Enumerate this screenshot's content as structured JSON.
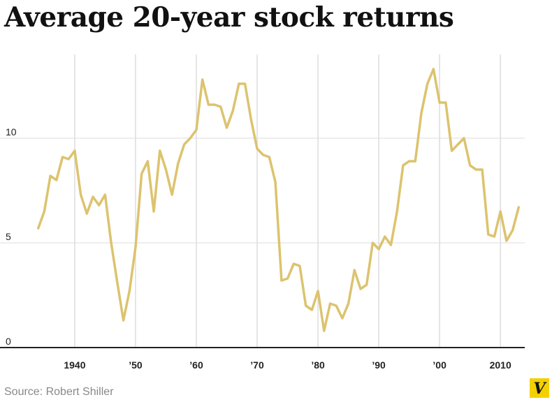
{
  "title": "Average 20-year stock returns",
  "source": "Source: Robert Shiller",
  "logo_text": "V",
  "colors": {
    "line": "#dcc36e",
    "grid": "#dddddd",
    "axis": "#222222",
    "text": "#222222",
    "muted": "#888888",
    "logo_bg": "#f5d000"
  },
  "chart_data": {
    "type": "line",
    "title": "Average 20-year stock returns",
    "xlabel": "",
    "ylabel": "",
    "xlim": [
      1933,
      2014
    ],
    "ylim": [
      0,
      14
    ],
    "grid": true,
    "x_ticks": [
      {
        "value": 1940,
        "label": "1940"
      },
      {
        "value": 1950,
        "label": "’50"
      },
      {
        "value": 1960,
        "label": "’60"
      },
      {
        "value": 1970,
        "label": "’70"
      },
      {
        "value": 1980,
        "label": "’80"
      },
      {
        "value": 1990,
        "label": "’90"
      },
      {
        "value": 2000,
        "label": "’00"
      },
      {
        "value": 2010,
        "label": "2010"
      }
    ],
    "y_ticks": [
      {
        "value": 0,
        "label": "0"
      },
      {
        "value": 5,
        "label": "5"
      },
      {
        "value": 10,
        "label": "10"
      }
    ],
    "series": [
      {
        "x": [
          1934,
          1935,
          1936,
          1937,
          1938,
          1939,
          1940,
          1941,
          1942,
          1943,
          1944,
          1945,
          1946,
          1947,
          1948,
          1949,
          1950,
          1951,
          1952,
          1953,
          1954,
          1955,
          1956,
          1957,
          1958,
          1959,
          1960,
          1961,
          1962,
          1963,
          1964,
          1965,
          1966,
          1967,
          1968,
          1969,
          1970,
          1971,
          1972,
          1973,
          1974,
          1975,
          1976,
          1977,
          1978,
          1979,
          1980,
          1981,
          1982,
          1983,
          1984,
          1985,
          1986,
          1987,
          1988,
          1989,
          1990,
          1991,
          1992,
          1993,
          1994,
          1995,
          1996,
          1997,
          1998,
          1999,
          2000,
          2001,
          2002,
          2003,
          2004,
          2005,
          2006,
          2007,
          2008,
          2009,
          2010,
          2011,
          2012,
          2013
        ],
        "values": [
          5.7,
          6.5,
          8.2,
          8.0,
          9.1,
          9.0,
          9.4,
          7.3,
          6.4,
          7.2,
          6.8,
          7.3,
          5.0,
          3.1,
          1.3,
          2.7,
          4.8,
          8.3,
          8.9,
          6.5,
          9.4,
          8.5,
          7.3,
          8.8,
          9.7,
          10.0,
          10.4,
          12.8,
          11.6,
          11.6,
          11.5,
          10.5,
          11.3,
          12.6,
          12.6,
          10.9,
          9.5,
          9.2,
          9.1,
          7.9,
          3.2,
          3.3,
          4.0,
          3.9,
          2.0,
          1.8,
          2.7,
          0.8,
          2.1,
          2.0,
          1.4,
          2.1,
          3.7,
          2.8,
          3.0,
          5.0,
          4.7,
          5.3,
          4.9,
          6.5,
          8.7,
          8.9,
          8.9,
          11.2,
          12.6,
          13.3,
          11.7,
          11.7,
          9.4,
          9.7,
          10.0,
          8.7,
          8.5,
          8.5,
          5.4,
          5.3,
          6.5,
          5.1,
          5.6,
          6.7
        ]
      }
    ]
  }
}
